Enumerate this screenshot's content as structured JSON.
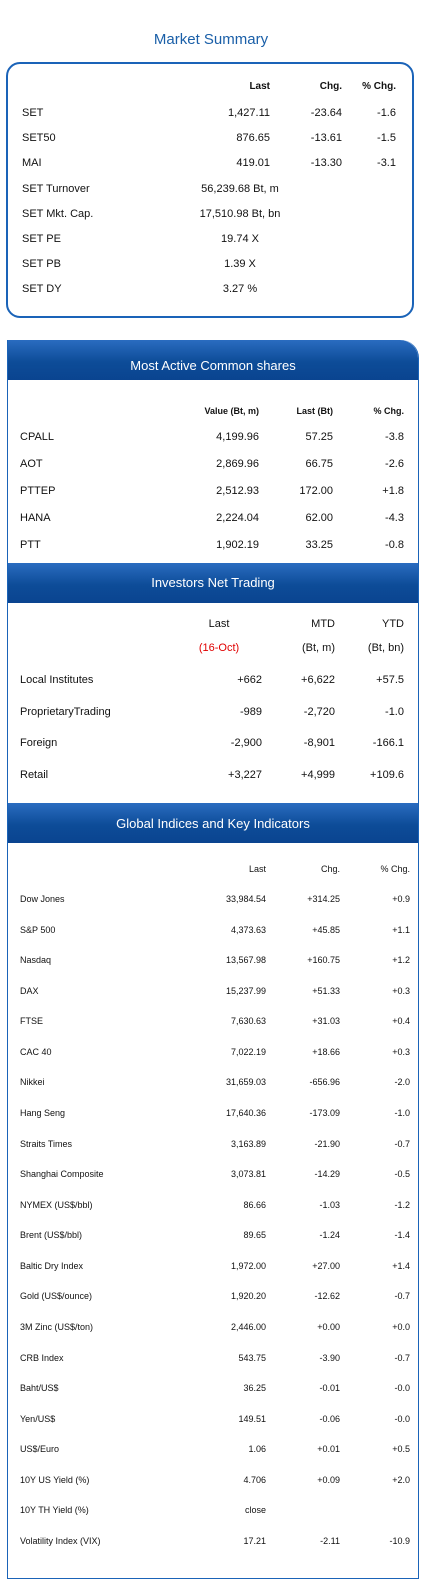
{
  "market_summary": {
    "title": "Market Summary",
    "headers": [
      "Last",
      "Chg.",
      "% Chg."
    ],
    "rows": [
      [
        "SET",
        "1,427.11",
        "-23.64",
        "-1.6"
      ],
      [
        "SET50",
        "876.65",
        "-13.61",
        "-1.5"
      ],
      [
        "MAI",
        "419.01",
        "-13.30",
        "-3.1"
      ],
      [
        "SET Turnover",
        "56,239.68 Bt, m"
      ],
      [
        "SET Mkt. Cap.",
        "17,510.98 Bt, bn"
      ],
      [
        "SET PE",
        "19.74 X"
      ],
      [
        "SET PB",
        "1.39 X"
      ],
      [
        "SET DY",
        "3.27 %"
      ]
    ]
  },
  "most_active": {
    "title": "Most Active Common shares",
    "headers": [
      "Value (Bt, m)",
      "Last (Bt)",
      "% Chg."
    ],
    "rows": [
      [
        "CPALL",
        "4,199.96",
        "57.25",
        "-3.8"
      ],
      [
        "AOT",
        "2,869.96",
        "66.75",
        "-2.6"
      ],
      [
        "PTTEP",
        "2,512.93",
        "172.00",
        "+1.8"
      ],
      [
        "HANA",
        "2,224.04",
        "62.00",
        "-4.3"
      ],
      [
        "PTT",
        "1,902.19",
        "33.25",
        "-0.8"
      ]
    ]
  },
  "investors": {
    "title": "Investors Net Trading",
    "headers": [
      "Last",
      "MTD",
      "YTD"
    ],
    "subheaders": [
      "(16-Oct)",
      "(Bt, m)",
      "(Bt, bn)"
    ],
    "rows": [
      [
        "Local Institutes",
        "+662",
        "+6,622",
        "+57.5"
      ],
      [
        "ProprietaryTrading",
        "-989",
        "-2,720",
        "-1.0"
      ],
      [
        "Foreign",
        "-2,900",
        "-8,901",
        "-166.1"
      ],
      [
        "Retail",
        "+3,227",
        "+4,999",
        "+109.6"
      ]
    ]
  },
  "global": {
    "title": "Global Indices and Key Indicators",
    "headers": [
      "Last",
      "Chg.",
      "% Chg."
    ],
    "rows": [
      [
        "Dow Jones",
        "33,984.54",
        "+314.25",
        "+0.9"
      ],
      [
        "S&P 500",
        "4,373.63",
        "+45.85",
        "+1.1"
      ],
      [
        "Nasdaq",
        "13,567.98",
        "+160.75",
        "+1.2"
      ],
      [
        "DAX",
        "15,237.99",
        "+51.33",
        "+0.3"
      ],
      [
        "FTSE",
        "7,630.63",
        "+31.03",
        "+0.4"
      ],
      [
        "CAC 40",
        "7,022.19",
        "+18.66",
        "+0.3"
      ],
      [
        "Nikkei",
        "31,659.03",
        "-656.96",
        "-2.0"
      ],
      [
        "Hang Seng",
        "17,640.36",
        "-173.09",
        "-1.0"
      ],
      [
        "Straits Times",
        "3,163.89",
        "-21.90",
        "-0.7"
      ],
      [
        "Shanghai Composite",
        "3,073.81",
        "-14.29",
        "-0.5"
      ],
      [
        "NYMEX (US$/bbl)",
        "86.66",
        "-1.03",
        "-1.2"
      ],
      [
        "Brent (US$/bbl)",
        "89.65",
        "-1.24",
        "-1.4"
      ],
      [
        "Baltic Dry Index",
        "1,972.00",
        "+27.00",
        "+1.4"
      ],
      [
        "Gold (US$/ounce)",
        "1,920.20",
        "-12.62",
        "-0.7"
      ],
      [
        "3M Zinc (US$/ton)",
        "2,446.00",
        "+0.00",
        "+0.0"
      ],
      [
        "CRB Index",
        "543.75",
        "-3.90",
        "-0.7"
      ],
      [
        "Baht/US$",
        "36.25",
        "-0.01",
        "-0.0"
      ],
      [
        "Yen/US$",
        "149.51",
        "-0.06",
        "-0.0"
      ],
      [
        "US$/Euro",
        "1.06",
        "+0.01",
        "+0.5"
      ],
      [
        "10Y US Yield (%)",
        "4.706",
        "+0.09",
        "+2.0"
      ],
      [
        "10Y TH Yield (%)",
        "close"
      ],
      [
        "Volatility Index (VIX)",
        "17.21",
        "-2.11",
        "-10.9"
      ]
    ]
  }
}
